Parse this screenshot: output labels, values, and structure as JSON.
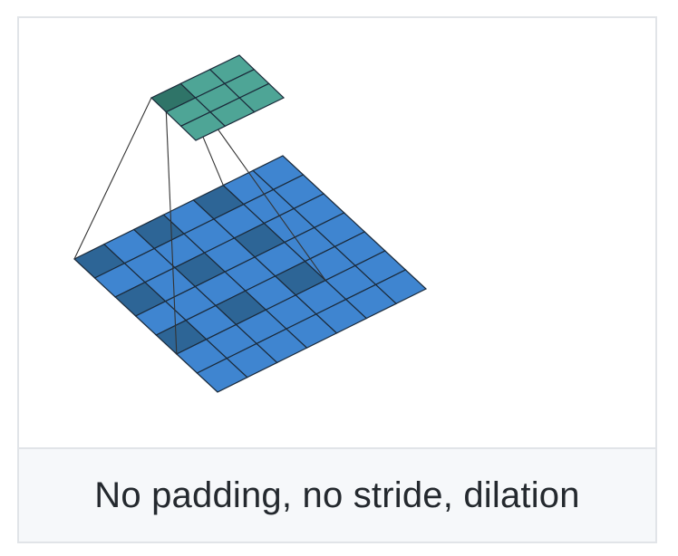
{
  "caption": "No padding, no stride, dilation",
  "diagram": {
    "input_grid_size": 7,
    "output_grid_size": 3,
    "kernel_size": 3,
    "dilation": 2,
    "highlight_output_cell": [
      0,
      0
    ],
    "colors": {
      "input_fill": "#3f85d0",
      "input_highlight": "#2d6596",
      "output_fill": "#4ea596",
      "output_highlight": "#2f7468",
      "grid_line": "#1b2a3a",
      "projection_line": "#333333"
    }
  }
}
